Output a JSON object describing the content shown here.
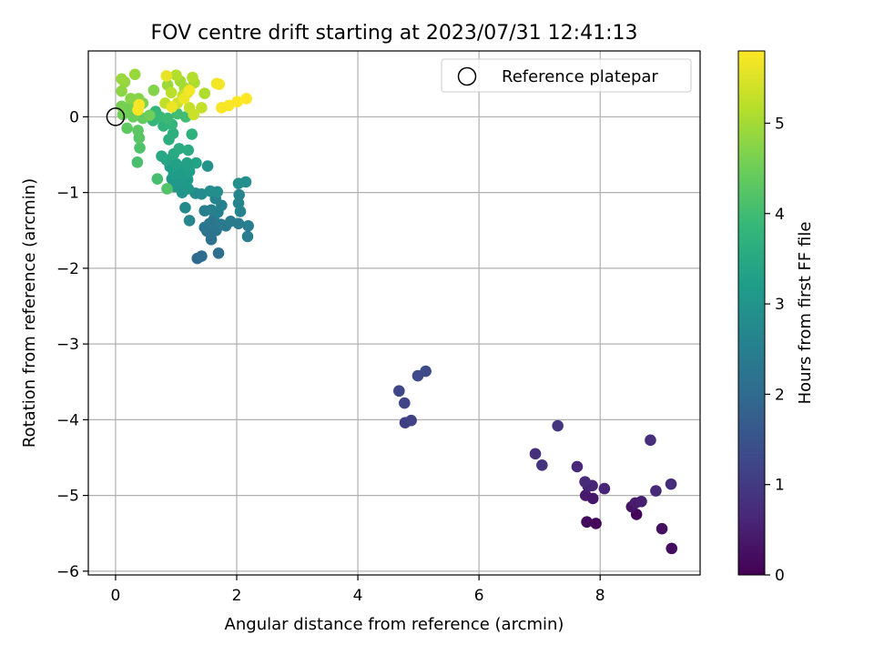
{
  "chart_data": {
    "type": "scatter",
    "title": "FOV centre drift starting at 2023/07/31 12:41:13",
    "xlabel": "Angular distance from reference (arcmin)",
    "ylabel": "Rotation from reference (arcmin)",
    "xlim": [
      -0.45,
      9.65
    ],
    "ylim": [
      -6.05,
      0.87
    ],
    "xticks": [
      0,
      2,
      4,
      6,
      8
    ],
    "yticks": [
      0,
      -1,
      -2,
      -3,
      -4,
      -5,
      -6
    ],
    "grid": true,
    "legend": {
      "position": "top-right",
      "entries": [
        "Reference platepar"
      ]
    },
    "reference": {
      "x": 0,
      "y": 0
    },
    "colorbar": {
      "label": "Hours from first FF file",
      "range": [
        0,
        5.8
      ],
      "ticks": [
        0,
        1,
        2,
        3,
        4,
        5
      ],
      "colormap": "viridis",
      "stops": [
        "#440154",
        "#482878",
        "#3e4989",
        "#31688e",
        "#26828e",
        "#1f9e89",
        "#35b779",
        "#6ece58",
        "#b5de2b",
        "#fde725"
      ]
    },
    "points": [
      {
        "x": 8.6,
        "y": -5.25,
        "t": 0.05
      },
      {
        "x": 7.93,
        "y": -5.37,
        "t": 0.1
      },
      {
        "x": 7.78,
        "y": -5.35,
        "t": 0.15
      },
      {
        "x": 9.18,
        "y": -5.7,
        "t": 0.2
      },
      {
        "x": 9.02,
        "y": -5.44,
        "t": 0.25
      },
      {
        "x": 8.52,
        "y": -5.15,
        "t": 0.3
      },
      {
        "x": 7.88,
        "y": -5.04,
        "t": 0.35
      },
      {
        "x": 7.76,
        "y": -5.0,
        "t": 0.4
      },
      {
        "x": 8.58,
        "y": -5.1,
        "t": 0.45
      },
      {
        "x": 8.68,
        "y": -5.08,
        "t": 0.5
      },
      {
        "x": 7.8,
        "y": -4.88,
        "t": 0.55
      },
      {
        "x": 7.87,
        "y": -4.87,
        "t": 0.6
      },
      {
        "x": 8.07,
        "y": -4.91,
        "t": 0.6
      },
      {
        "x": 7.62,
        "y": -4.62,
        "t": 0.65
      },
      {
        "x": 7.75,
        "y": -4.82,
        "t": 0.7
      },
      {
        "x": 8.92,
        "y": -4.94,
        "t": 0.7
      },
      {
        "x": 9.17,
        "y": -4.85,
        "t": 0.75
      },
      {
        "x": 8.83,
        "y": -4.27,
        "t": 0.8
      },
      {
        "x": 6.93,
        "y": -4.45,
        "t": 0.8
      },
      {
        "x": 7.04,
        "y": -4.6,
        "t": 0.85
      },
      {
        "x": 7.3,
        "y": -4.08,
        "t": 0.9
      },
      {
        "x": 4.78,
        "y": -4.04,
        "t": 1.1
      },
      {
        "x": 4.88,
        "y": -4.01,
        "t": 1.15
      },
      {
        "x": 4.77,
        "y": -3.78,
        "t": 1.2
      },
      {
        "x": 4.68,
        "y": -3.62,
        "t": 1.25
      },
      {
        "x": 4.99,
        "y": -3.42,
        "t": 1.3
      },
      {
        "x": 5.12,
        "y": -3.36,
        "t": 1.35
      },
      {
        "x": 1.35,
        "y": -1.87,
        "t": 2.0
      },
      {
        "x": 1.42,
        "y": -1.84,
        "t": 2.05
      },
      {
        "x": 1.7,
        "y": -1.8,
        "t": 2.1
      },
      {
        "x": 1.58,
        "y": -1.62,
        "t": 2.15
      },
      {
        "x": 1.51,
        "y": -1.51,
        "t": 2.2
      },
      {
        "x": 1.47,
        "y": -1.46,
        "t": 2.25
      },
      {
        "x": 1.66,
        "y": -1.5,
        "t": 2.25
      },
      {
        "x": 1.55,
        "y": -1.41,
        "t": 2.3
      },
      {
        "x": 1.62,
        "y": -1.36,
        "t": 2.3
      },
      {
        "x": 1.74,
        "y": -1.42,
        "t": 2.35
      },
      {
        "x": 1.82,
        "y": -1.44,
        "t": 2.35
      },
      {
        "x": 1.9,
        "y": -1.38,
        "t": 2.4
      },
      {
        "x": 2.03,
        "y": -1.41,
        "t": 2.4
      },
      {
        "x": 2.19,
        "y": -1.44,
        "t": 2.45
      },
      {
        "x": 2.18,
        "y": -1.58,
        "t": 2.45
      },
      {
        "x": 1.47,
        "y": -1.24,
        "t": 2.5
      },
      {
        "x": 1.58,
        "y": -1.23,
        "t": 2.5
      },
      {
        "x": 1.69,
        "y": -1.26,
        "t": 2.55
      },
      {
        "x": 1.75,
        "y": -1.17,
        "t": 2.55
      },
      {
        "x": 1.65,
        "y": -1.08,
        "t": 2.6
      },
      {
        "x": 2.06,
        "y": -1.25,
        "t": 2.6
      },
      {
        "x": 2.03,
        "y": -1.14,
        "t": 2.65
      },
      {
        "x": 2.04,
        "y": -1.03,
        "t": 2.65
      },
      {
        "x": 1.22,
        "y": -1.37,
        "t": 2.7
      },
      {
        "x": 1.15,
        "y": -1.2,
        "t": 2.75
      },
      {
        "x": 1.42,
        "y": -1.02,
        "t": 2.8
      },
      {
        "x": 1.32,
        "y": -1.01,
        "t": 2.8
      },
      {
        "x": 1.56,
        "y": -0.98,
        "t": 2.85
      },
      {
        "x": 1.68,
        "y": -0.99,
        "t": 2.85
      },
      {
        "x": 2.03,
        "y": -0.88,
        "t": 2.9
      },
      {
        "x": 2.15,
        "y": -0.86,
        "t": 2.9
      },
      {
        "x": 1.52,
        "y": -0.65,
        "t": 2.95
      },
      {
        "x": 1.1,
        "y": -1.0,
        "t": 3.0
      },
      {
        "x": 0.98,
        "y": -0.92,
        "t": 3.05
      },
      {
        "x": 1.2,
        "y": -0.95,
        "t": 3.05
      },
      {
        "x": 1.05,
        "y": -0.87,
        "t": 3.1
      },
      {
        "x": 0.93,
        "y": -0.82,
        "t": 3.1
      },
      {
        "x": 1.19,
        "y": -0.83,
        "t": 3.15
      },
      {
        "x": 1.12,
        "y": -0.75,
        "t": 3.15
      },
      {
        "x": 0.96,
        "y": -0.75,
        "t": 3.2
      },
      {
        "x": 1.06,
        "y": -0.7,
        "t": 3.2
      },
      {
        "x": 1.22,
        "y": -0.72,
        "t": 3.25
      },
      {
        "x": 0.9,
        "y": -0.66,
        "t": 3.25
      },
      {
        "x": 1.0,
        "y": -0.62,
        "t": 3.3
      },
      {
        "x": 1.18,
        "y": -0.61,
        "t": 3.3
      },
      {
        "x": 1.33,
        "y": -0.61,
        "t": 3.35
      },
      {
        "x": 0.84,
        "y": -0.57,
        "t": 3.4
      },
      {
        "x": 0.76,
        "y": -0.52,
        "t": 3.45
      },
      {
        "x": 0.96,
        "y": -0.49,
        "t": 3.5
      },
      {
        "x": 1.05,
        "y": -0.42,
        "t": 3.55
      },
      {
        "x": 1.2,
        "y": -0.44,
        "t": 3.55
      },
      {
        "x": 0.88,
        "y": -0.3,
        "t": 3.6
      },
      {
        "x": 0.95,
        "y": -0.22,
        "t": 3.65
      },
      {
        "x": 1.26,
        "y": -0.23,
        "t": 3.7
      },
      {
        "x": 0.79,
        "y": -0.12,
        "t": 3.75
      },
      {
        "x": 0.93,
        "y": -0.1,
        "t": 3.8
      },
      {
        "x": 0.62,
        "y": -0.05,
        "t": 3.8
      },
      {
        "x": 0.66,
        "y": 0.07,
        "t": 3.85
      },
      {
        "x": 0.73,
        "y": 0.0,
        "t": 3.9
      },
      {
        "x": 0.86,
        "y": -0.02,
        "t": 3.95
      },
      {
        "x": 1.02,
        "y": 0.04,
        "t": 4.0
      },
      {
        "x": 1.16,
        "y": 0.0,
        "t": 4.0
      },
      {
        "x": 0.69,
        "y": -0.82,
        "t": 4.05
      },
      {
        "x": 0.36,
        "y": -0.6,
        "t": 4.1
      },
      {
        "x": 0.4,
        "y": -0.41,
        "t": 4.15
      },
      {
        "x": 0.85,
        "y": -0.95,
        "t": 4.2
      },
      {
        "x": 0.39,
        "y": -0.28,
        "t": 4.25
      },
      {
        "x": 0.37,
        "y": -0.18,
        "t": 4.3
      },
      {
        "x": 0.19,
        "y": -0.15,
        "t": 4.35
      },
      {
        "x": 0.45,
        "y": -0.02,
        "t": 4.4
      },
      {
        "x": 0.29,
        "y": 0.0,
        "t": 4.45
      },
      {
        "x": 0.12,
        "y": 0.03,
        "t": 4.5
      },
      {
        "x": 0.56,
        "y": 0.02,
        "t": 4.5
      },
      {
        "x": 0.2,
        "y": 0.12,
        "t": 4.55
      },
      {
        "x": 0.31,
        "y": 0.15,
        "t": 4.6
      },
      {
        "x": 0.1,
        "y": 0.14,
        "t": 4.6
      },
      {
        "x": 0.45,
        "y": 0.18,
        "t": 4.65
      },
      {
        "x": 0.63,
        "y": 0.35,
        "t": 4.7
      },
      {
        "x": 0.38,
        "y": 0.24,
        "t": 4.7
      },
      {
        "x": 0.25,
        "y": 0.24,
        "t": 4.75
      },
      {
        "x": 0.1,
        "y": 0.34,
        "t": 4.8
      },
      {
        "x": 0.15,
        "y": 0.46,
        "t": 4.85
      },
      {
        "x": 0.32,
        "y": 0.56,
        "t": 4.9
      },
      {
        "x": 0.1,
        "y": 0.5,
        "t": 4.9
      },
      {
        "x": 0.86,
        "y": 0.42,
        "t": 4.95
      },
      {
        "x": 1.07,
        "y": 0.47,
        "t": 5.0
      },
      {
        "x": 1.14,
        "y": 0.38,
        "t": 5.0
      },
      {
        "x": 1.3,
        "y": 0.45,
        "t": 5.05
      },
      {
        "x": 1.47,
        "y": 0.31,
        "t": 5.1
      },
      {
        "x": 1.0,
        "y": 0.55,
        "t": 5.15
      },
      {
        "x": 1.27,
        "y": 0.52,
        "t": 5.15
      },
      {
        "x": 0.92,
        "y": 0.32,
        "t": 5.2
      },
      {
        "x": 1.11,
        "y": 0.28,
        "t": 5.25
      },
      {
        "x": 0.82,
        "y": 0.18,
        "t": 5.25
      },
      {
        "x": 1.22,
        "y": 0.12,
        "t": 5.3
      },
      {
        "x": 1.42,
        "y": 0.12,
        "t": 5.3
      },
      {
        "x": 1.29,
        "y": 0.03,
        "t": 5.35
      },
      {
        "x": 1.02,
        "y": 0.18,
        "t": 5.4
      },
      {
        "x": 1.19,
        "y": 0.32,
        "t": 5.45
      },
      {
        "x": 0.84,
        "y": 0.54,
        "t": 5.6
      },
      {
        "x": 0.93,
        "y": 0.13,
        "t": 5.65
      },
      {
        "x": 1.13,
        "y": 0.24,
        "t": 5.65
      },
      {
        "x": 1.22,
        "y": 0.35,
        "t": 5.7
      },
      {
        "x": 1.67,
        "y": 0.44,
        "t": 5.7
      },
      {
        "x": 1.71,
        "y": 0.43,
        "t": 5.7
      },
      {
        "x": 1.75,
        "y": 0.12,
        "t": 5.75
      },
      {
        "x": 1.87,
        "y": 0.15,
        "t": 5.75
      },
      {
        "x": 2.01,
        "y": 0.2,
        "t": 5.8
      },
      {
        "x": 2.16,
        "y": 0.24,
        "t": 5.8
      },
      {
        "x": 0.37,
        "y": 0.09,
        "t": 5.8
      },
      {
        "x": 0.39,
        "y": 0.16,
        "t": 5.75
      }
    ]
  }
}
